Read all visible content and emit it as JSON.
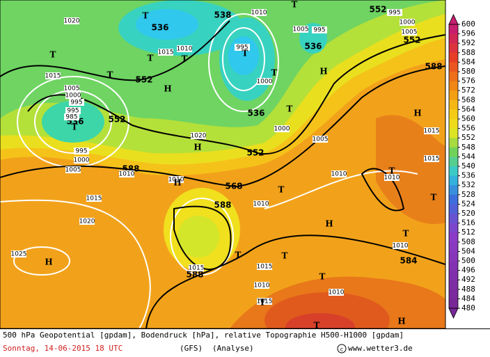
{
  "colorbar": {
    "labels": [
      600,
      596,
      592,
      588,
      584,
      580,
      576,
      572,
      568,
      564,
      560,
      556,
      552,
      548,
      544,
      540,
      536,
      532,
      528,
      524,
      520,
      516,
      512,
      508,
      504,
      500,
      496,
      492,
      488,
      484,
      480
    ]
  },
  "geopotential_labels": [
    536,
    538,
    552,
    552,
    552,
    552,
    536,
    536,
    552,
    588,
    568,
    588,
    588,
    584,
    588,
    536
  ],
  "pressure_labels": [
    1010,
    1005,
    995,
    1000,
    1005,
    995,
    1020,
    1015,
    1010,
    1015,
    1005,
    1000,
    995,
    995,
    985,
    995,
    1000,
    1005,
    1010,
    1015,
    1020,
    1025,
    1020,
    1010,
    1000,
    995,
    1000,
    1005,
    1010,
    1010,
    1010,
    1015,
    1015,
    1015,
    1015,
    1010,
    1015,
    1010,
    1010
  ],
  "pressure_centers": [
    "T",
    "T",
    "T",
    "T",
    "T",
    "T",
    "T",
    "T",
    "T",
    "T",
    "H",
    "H",
    "H",
    "H",
    "H",
    "T",
    "T",
    "T",
    "H",
    "T",
    "T",
    "T",
    "H",
    "T",
    "T",
    "T",
    "H"
  ],
  "footer": {
    "description": "500 hPa Geopotential [gpdam], Bodendruck [hPa], relative Topographie H500-H1000 [gpdam]",
    "date": "Sonntag, 14-06-2015  18 UTC",
    "model": "(GFS)",
    "analysis": "(Analyse)",
    "credit": "www.wetter3.de"
  }
}
